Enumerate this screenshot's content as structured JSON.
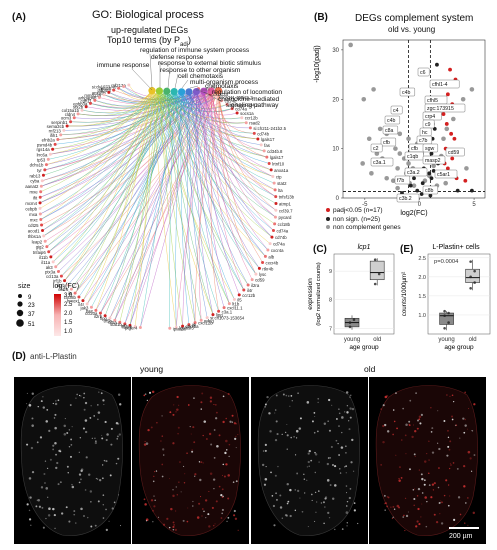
{
  "panels": {
    "A": {
      "label": "(A)",
      "title": "GO: Biological process",
      "subtitle_1": "up-regulated DEGs",
      "subtitle_2": "Top10 terms (by P",
      "subtitle_2_sub": "adj",
      "subtitle_2_end": ")",
      "terms": [
        "regulation of immune system process",
        "defense response",
        "immune response",
        "response to external biotic stimulus",
        "response to other organism",
        "cell chemotaxis",
        "multi-organism process",
        "chemotaxis",
        "regulation of locomotion",
        "chemokine-mediated",
        "signaling pathway"
      ],
      "genes_left": [
        "rnf213a",
        "si:ch1073-40…",
        "zgc:15…",
        "pdgfba",
        "anxa5b",
        "mmp13a",
        "arhgap4b",
        "cdh11",
        "ephb3a",
        "stx2b",
        "col15a1b",
        "cldn4",
        "ocm3",
        "serpinb1",
        "sema3cb",
        "rnf213",
        "ifih1",
        "efnb2a",
        "psmd4b",
        "rgs14a",
        "lrrc6a",
        "tp53",
        "dchs1b",
        "tyr",
        "rab13",
        "cyba",
        "aanat2",
        "mxe",
        "ifit",
        "mcm4",
        "cebpb",
        "mxa",
        "mxc",
        "cdt25",
        "acod1",
        "thbs1a",
        "leap2",
        "gig2",
        "tnfaip6",
        "il11b",
        "il11a",
        "ak3",
        "ptx3a",
        "ccl13a",
        "irf1b",
        "il1rb",
        "cxcr6",
        "il6",
        "cxcl8b",
        "hmox1",
        "il4r",
        "jak3",
        "bax",
        "ccl20a",
        "il2rb",
        "lipg",
        "tlr5b",
        "tlr5a",
        "stat1b",
        "irf9",
        "il12rb",
        "ptger4"
      ],
      "genes_right": [
        "mmp13b",
        "ccl20a",
        "cxcl12a",
        "si:ch211-158j21.3",
        "cd74b",
        "si:dkeyp-9d4.2",
        "cd74a",
        "socs1a",
        "ccr12b",
        "rsad2",
        "si:ch211-241b2.5",
        "cd74b",
        "lgals17",
        "fas",
        "cd34b.8",
        "lgals17",
        "lrtnf10",
        "anxa1a",
        "ctp",
        "stat2",
        "lta",
        "tnfsf13b",
        "atmp1",
        "ccl39.7",
        "pycard",
        "ccl18b",
        "cd74a",
        "cd74b",
        "cd74a",
        "cxcr4a",
        "alb",
        "cxcr4b",
        "rtkr4b",
        "lysc",
        "cd59",
        "il2ra",
        "il4r",
        "ccr12b",
        "il5",
        "lt1b",
        "cxcl11.1",
        "c3a.1",
        "lipg",
        "si:ch1073-153654",
        "mfng",
        "cxcl12b",
        "itk",
        "ptk2ba",
        "lgals9l3",
        "ipiar2a"
      ],
      "size_legend_title": "size",
      "size_values": [
        "9",
        "23",
        "37",
        "51"
      ],
      "lfc_legend_title": "log",
      "lfc_legend_sub": "2",
      "lfc_legend_end": "(FC)",
      "lfc_ticks": [
        "3.0",
        "2.5",
        "2.0",
        "1.5",
        "1.0"
      ]
    },
    "B": {
      "label": "(B)",
      "title": "DEGs complement system",
      "subtitle": "old vs. young",
      "ylabel": "-log10(padj)",
      "xlabel": "log2(FC)",
      "x_ticks": [
        "-5",
        "0",
        "5"
      ],
      "y_ticks": [
        "0",
        "10",
        "20",
        "30"
      ],
      "labels": [
        "c6",
        "cfhl1-4",
        "c4b",
        "cfhl5",
        "zgc:173915",
        "crp4",
        "c9",
        "hc",
        "c7b",
        "cfb",
        "sgw",
        "c4",
        "c3b.2",
        "c8a",
        "cfb",
        "cd59",
        "c1qb",
        "c3a.1",
        "c3a.2",
        "masp2",
        "c5ar1",
        "f7b",
        "c2",
        "c4b",
        "c8b"
      ],
      "legend": [
        {
          "label": "padj<0.05 (n=17)",
          "color": "#d42020"
        },
        {
          "label": "non sign. (n=25)",
          "color": "#222222"
        },
        {
          "label": "non complement genes",
          "color": "#999999"
        }
      ]
    },
    "C": {
      "label": "(C)",
      "gene": "lcp1",
      "ylabel_1": "expression",
      "ylabel_2": "(log2 normalized counts)",
      "xlabel": "age group",
      "groups": [
        "young",
        "old"
      ],
      "y_ticks": [
        "7",
        "8",
        "9"
      ]
    },
    "E": {
      "label": "(E)",
      "title": "L-Plastin+ cells",
      "pvalue": "p=0.0004",
      "ylabel": "counts/1000µm²",
      "xlabel": "age group",
      "groups": [
        "young",
        "old"
      ],
      "y_ticks": [
        "1.0",
        "1.5",
        "2.0",
        "2.5"
      ]
    },
    "D": {
      "label": "(D)",
      "stain": "anti-L-Plastin",
      "young_label": "young",
      "old_label": "old",
      "scalebar": "200 µm"
    }
  },
  "chart_data": [
    {
      "type": "scatter",
      "title": "DEGs complement system",
      "subtitle": "old vs. young",
      "xlabel": "log2(FC)",
      "ylabel": "-log10(padj)",
      "xlim": [
        -7,
        6
      ],
      "ylim": [
        0,
        32
      ],
      "series": [
        {
          "name": "padj<0.05 (n=17)",
          "points": [
            [
              2.8,
              26
            ],
            [
              3.3,
              24
            ],
            [
              2.6,
              21
            ],
            [
              3.0,
              19
            ],
            [
              2.2,
              17
            ],
            [
              2.5,
              15
            ],
            [
              2.9,
              13
            ],
            [
              3.2,
              12
            ],
            [
              2.4,
              10
            ],
            [
              2.7,
              9
            ],
            [
              3.0,
              8
            ],
            [
              2.3,
              7
            ],
            [
              2.6,
              6
            ],
            [
              2.1,
              5
            ],
            [
              2.8,
              4.5
            ],
            [
              3.4,
              4
            ],
            [
              4.2,
              3.5
            ]
          ]
        },
        {
          "name": "non sign. (n=25)",
          "points": [
            [
              1.6,
              27
            ],
            [
              1.0,
              16
            ],
            [
              1.4,
              14
            ],
            [
              1.2,
              12
            ],
            [
              0.8,
              11
            ],
            [
              1.5,
              10
            ],
            [
              1.1,
              9
            ],
            [
              0.6,
              8
            ],
            [
              1.7,
              7
            ],
            [
              0.4,
              6
            ],
            [
              1.3,
              5.5
            ],
            [
              0.9,
              5
            ],
            [
              -0.5,
              4
            ],
            [
              1.1,
              4
            ],
            [
              0.3,
              3
            ],
            [
              -0.8,
              2.5
            ],
            [
              0.6,
              2
            ],
            [
              1.5,
              2
            ],
            [
              -0.2,
              1.5
            ],
            [
              0.9,
              1.2
            ],
            [
              3.5,
              1.5
            ],
            [
              4.8,
              1.5
            ],
            [
              -1.6,
              1.0
            ],
            [
              0.2,
              0.8
            ],
            [
              1.0,
              0.5
            ]
          ]
        },
        {
          "name": "non complement genes",
          "points": [
            [
              -6.3,
              31
            ],
            [
              -5.1,
              20
            ],
            [
              -4.2,
              22
            ],
            [
              -3.6,
              14
            ],
            [
              -3.0,
              13
            ],
            [
              -2.6,
              11
            ],
            [
              -2.2,
              10
            ],
            [
              -1.8,
              9
            ],
            [
              -1.4,
              8
            ],
            [
              -1.0,
              7
            ],
            [
              -0.6,
              6
            ],
            [
              -0.3,
              5
            ],
            [
              -2.0,
              6
            ],
            [
              -1.2,
              5
            ],
            [
              -2.8,
              7
            ],
            [
              -3.4,
              8
            ],
            [
              -0.9,
              3
            ],
            [
              -1.6,
              4
            ],
            [
              -2.4,
              3.5
            ],
            [
              -0.5,
              2.5
            ],
            [
              0.5,
              3.5
            ],
            [
              0.9,
              4.5
            ],
            [
              1.3,
              6.5
            ],
            [
              2.0,
              8.5
            ],
            [
              2.2,
              12
            ],
            [
              2.5,
              14
            ],
            [
              3.1,
              16
            ],
            [
              3.6,
              18
            ],
            [
              4.0,
              20
            ],
            [
              4.8,
              22
            ],
            [
              1.8,
              19
            ],
            [
              2.9,
              23
            ],
            [
              -3.9,
              9
            ],
            [
              -4.6,
              12
            ],
            [
              -1.0,
              12
            ],
            [
              0.2,
              9
            ],
            [
              -2.4,
              16
            ],
            [
              -0.2,
              11
            ],
            [
              0.6,
              13
            ],
            [
              1.2,
              15
            ],
            [
              -1.8,
              13
            ],
            [
              -3.0,
              4
            ],
            [
              -2.0,
              2
            ],
            [
              1.6,
              2.5
            ],
            [
              2.4,
              3
            ],
            [
              3.2,
              5
            ],
            [
              4.3,
              6
            ],
            [
              -4.4,
              5
            ],
            [
              -5.2,
              7
            ]
          ]
        }
      ],
      "thresholds": {
        "x": [
          -1,
          1
        ],
        "y": 1.3
      }
    },
    {
      "type": "box",
      "title": "lcp1",
      "xlabel": "age group",
      "ylabel": "expression (log2 normalized counts)",
      "categories": [
        "young",
        "old"
      ],
      "boxes": [
        {
          "min": 6.95,
          "q1": 7.05,
          "median": 7.2,
          "q3": 7.35,
          "max": 7.45
        },
        {
          "min": 8.5,
          "q1": 8.7,
          "median": 8.95,
          "q3": 9.35,
          "max": 9.45
        }
      ],
      "points": [
        [
          7.05,
          7.3,
          7.2
        ],
        [
          8.55,
          8.9,
          9.4
        ]
      ],
      "ylim": [
        6.8,
        9.6
      ]
    },
    {
      "type": "box",
      "title": "L-Plastin+ cells",
      "annotation": "p=0.0004",
      "xlabel": "age group",
      "ylabel": "counts/1000µm²",
      "categories": [
        "young",
        "old"
      ],
      "boxes": [
        {
          "min": 0.6,
          "q1": 0.75,
          "median": 0.98,
          "q3": 1.05,
          "max": 1.1
        },
        {
          "min": 1.65,
          "q1": 1.85,
          "median": 1.98,
          "q3": 2.2,
          "max": 2.45
        }
      ],
      "points": [
        [
          0.65,
          0.8,
          0.98,
          1.05,
          1.1
        ],
        [
          1.7,
          1.85,
          2.0,
          2.15,
          2.4
        ]
      ],
      "ylim": [
        0.5,
        2.6
      ]
    }
  ]
}
